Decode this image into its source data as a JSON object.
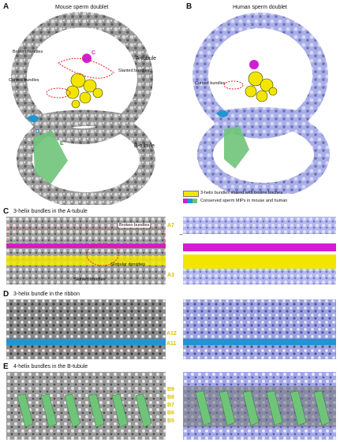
{
  "panelA": {
    "letter": "A",
    "title": "Mouse sperm doublet",
    "labels": {
      "broken": "Broken bundles",
      "slanted": "Slanted bundles",
      "curved": "Curved bundles",
      "atubule": "A-tubule",
      "btubule": "B-tubule",
      "c": "C",
      "d": "D",
      "e": "E"
    }
  },
  "panelB": {
    "letter": "B",
    "title": "Human sperm doublet",
    "labels": {
      "curved": "Curved bundles"
    }
  },
  "legend": {
    "yellow_text": "3-helix bundles shared with bovine trachea",
    "mips_text": "Conserved sperm MIPs in mouse and human"
  },
  "panelC": {
    "letter": "C",
    "title": "3-helix bundles in the A-tubule",
    "labels": {
      "broken": "Broken bundles",
      "globular": "Globular densities",
      "slanted": "Slanted bundles",
      "a7": "A7",
      "a3": "A3"
    }
  },
  "panelD": {
    "letter": "D",
    "title": "3-helix bundle in the ribbon",
    "labels": {
      "a12": "A12",
      "a11": "A11"
    }
  },
  "panelE": {
    "letter": "E",
    "title": "4-helix bundles in the B-tubule",
    "labels": {
      "b9": "B9",
      "b8": "B8",
      "b7": "B7",
      "b6": "B6",
      "b5": "B5"
    }
  },
  "colors": {
    "gray_density": "#8c8c8c",
    "lavender_density": "#a9aee8",
    "yellow": "#f2e600",
    "magenta": "#d21ed2",
    "cyan": "#1e96d2",
    "green": "#6fc47a"
  }
}
